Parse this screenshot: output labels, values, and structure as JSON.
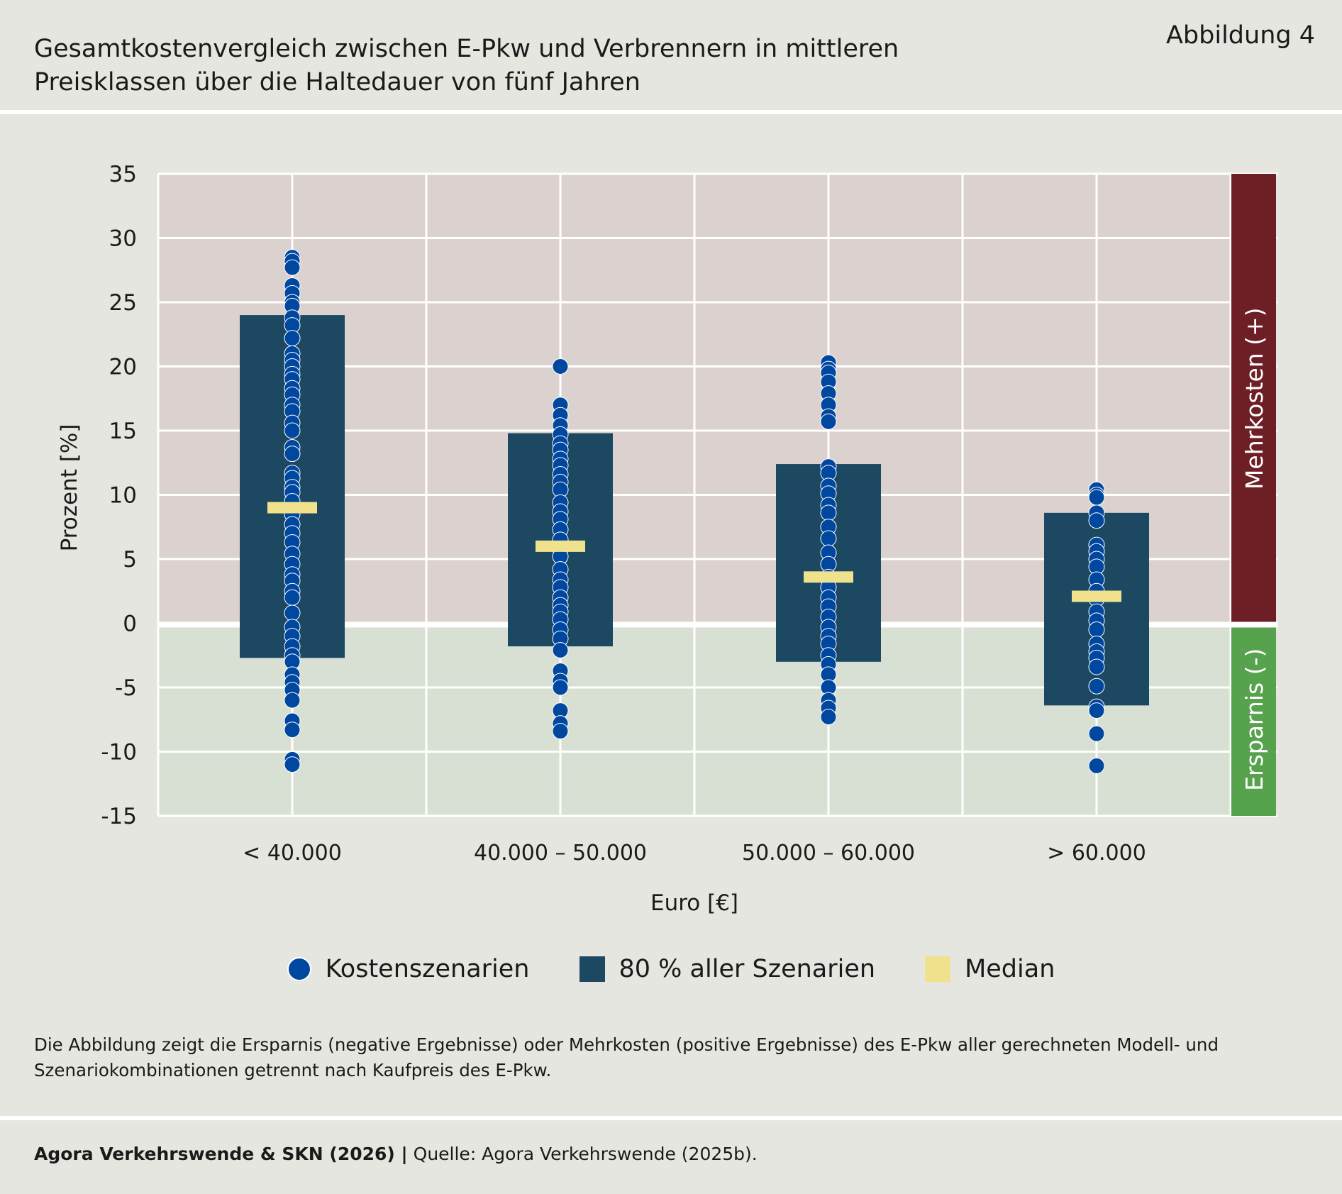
{
  "header": {
    "title_line1": "Gesamtkostenvergleich zwischen E-Pkw und Verbrennern in mittleren",
    "title_line2": "Preisklassen über die Haltedauer von fünf Jahren",
    "figure_label": "Abbildung 4"
  },
  "chart_data": {
    "type": "scatter",
    "xlabel": "Euro [€]",
    "ylabel": "Prozent [%]",
    "ylim": [
      -15,
      35
    ],
    "yticks": [
      35,
      30,
      25,
      20,
      15,
      10,
      5,
      0,
      -5,
      -10,
      -15
    ],
    "ytick_labels": [
      "35",
      "30",
      "25",
      "20",
      "15",
      "10",
      "5",
      "0",
      "-5",
      "-10",
      "-15"
    ],
    "categories": [
      "< 40.000",
      "40.000 – 50.000",
      "50.000 – 60.000",
      "> 60.000"
    ],
    "grid": true,
    "regions": {
      "positive_label": "Mehrkosten (+)",
      "negative_label": "Ersparnis (-)",
      "positive_color": "#6e1f25",
      "negative_color": "#57a24d"
    },
    "range_80": [
      [
        -2.7,
        24.0
      ],
      [
        -1.8,
        14.8
      ],
      [
        -3.0,
        12.4
      ],
      [
        -6.4,
        8.6
      ]
    ],
    "median": [
      9.0,
      6.0,
      3.6,
      2.1
    ],
    "points": [
      [
        28.5,
        28.2,
        27.7,
        26.3,
        25.7,
        25,
        24.7,
        23.8,
        23.2,
        22.2,
        21,
        20.5,
        20,
        19.4,
        19,
        18.3,
        17.8,
        17,
        16.5,
        15.6,
        15,
        13.7,
        13.2,
        11.7,
        11.3,
        10.6,
        10.2,
        9.5,
        8.5,
        7.7,
        7,
        6.3,
        5.4,
        4.6,
        3.8,
        3.3,
        2.5,
        2,
        0.8,
        -0.3,
        -1,
        -1.8,
        -2.5,
        -3,
        -4,
        -4.6,
        -5.2,
        -6,
        -7.6,
        -8.3,
        -10.6,
        -11
      ],
      [
        20,
        17,
        16.2,
        15.4,
        14.7,
        14,
        13.5,
        12.8,
        12.3,
        11.6,
        11,
        10.4,
        9.4,
        8.7,
        8.1,
        7.3,
        6.5,
        5.8,
        5.2,
        4.2,
        3.4,
        2.8,
        2,
        1.4,
        0.9,
        0.3,
        -0.5,
        -1.2,
        -2.1,
        -3.7,
        -4.5,
        -5,
        -6.8,
        -7.8,
        -8.4
      ],
      [
        20.3,
        19.8,
        19.5,
        18.8,
        17.9,
        17,
        16.1,
        15.7,
        12.2,
        11.7,
        10.7,
        10.1,
        9.2,
        8.6,
        7.5,
        6.6,
        5.5,
        4.6,
        3.6,
        2.8,
        2,
        1.3,
        0.5,
        -0.3,
        -1,
        -1.6,
        -2.5,
        -3.2,
        -4,
        -5,
        -6,
        -6.6,
        -7.3
      ],
      [
        10.4,
        10,
        9.8,
        8.6,
        8,
        6.1,
        5.6,
        5,
        4.4,
        3.4,
        2.5,
        1.9,
        0.9,
        0.2,
        -0.5,
        -1.6,
        -2.2,
        -2.7,
        -3.4,
        -4.9,
        -6.5,
        -6.8,
        -8.6,
        -11.1
      ]
    ],
    "colors": {
      "points": "#0047a0",
      "range": "#1d4862",
      "median": "#f0e28c"
    },
    "legend": {
      "points": "Kostenszenarien",
      "range": "80 % aller Szenarien",
      "median": "Median",
      "placement": "bottom"
    }
  },
  "note": "Die Abbildung zeigt die Ersparnis (negative Ergebnisse) oder Mehrkosten (positive Ergebnisse) des E-Pkw aller gerechneten Modell- und Szenariokombinationen getrennt nach Kaufpreis des E-Pkw.",
  "footer": {
    "author": "Agora Verkehrswende & SKN (2026) |",
    "source": "Quelle: Agora Verkehrswende (2025b)."
  }
}
